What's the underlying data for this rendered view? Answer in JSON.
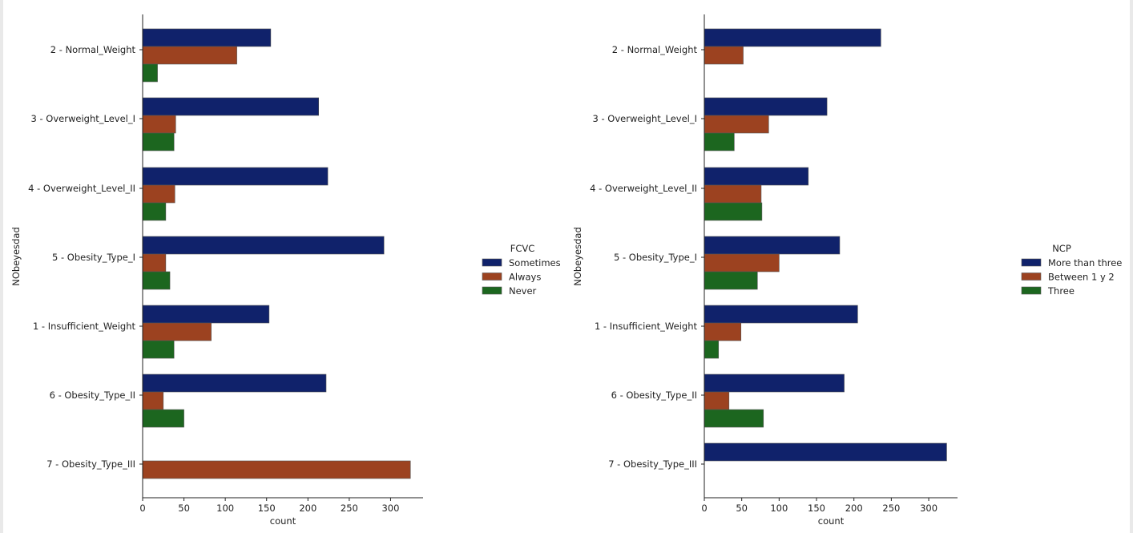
{
  "chart_data": [
    {
      "type": "bar",
      "orientation": "horizontal",
      "title": "",
      "xlabel": "count",
      "ylabel": "NObeyesdad",
      "xlim": [
        0,
        340
      ],
      "xticks": [
        0,
        50,
        100,
        150,
        200,
        250,
        300
      ],
      "grid": false,
      "legend_position": "right",
      "legend_title": "FCVC",
      "categories": [
        "2 - Normal_Weight",
        "3 - Overweight_Level_I",
        "4 - Overweight_Level_II",
        "5 - Obesity_Type_I",
        "1 - Insufficient_Weight",
        "6 - Obesity_Type_II",
        "7 - Obesity_Type_III"
      ],
      "series": [
        {
          "name": "Sometimes",
          "color": "#10226b",
          "values": [
            155,
            213,
            224,
            292,
            153,
            222,
            0
          ]
        },
        {
          "name": "Always",
          "color": "#9c4220",
          "values": [
            114,
            40,
            39,
            28,
            83,
            25,
            324
          ]
        },
        {
          "name": "Never",
          "color": "#1c661f",
          "values": [
            18,
            38,
            28,
            33,
            38,
            50,
            0
          ]
        }
      ]
    },
    {
      "type": "bar",
      "orientation": "horizontal",
      "title": "",
      "xlabel": "count",
      "ylabel": "NObeyesdad",
      "xlim": [
        0,
        340
      ],
      "xticks": [
        0,
        50,
        100,
        150,
        200,
        250,
        300
      ],
      "grid": false,
      "legend_position": "right",
      "legend_title": "NCP",
      "categories": [
        "2 - Normal_Weight",
        "3 - Overweight_Level_I",
        "4 - Overweight_Level_II",
        "5 - Obesity_Type_I",
        "1 - Insufficient_Weight",
        "6 - Obesity_Type_II",
        "7 - Obesity_Type_III"
      ],
      "series": [
        {
          "name": "More than three",
          "color": "#10226b",
          "values": [
            236,
            164,
            139,
            181,
            205,
            187,
            324
          ]
        },
        {
          "name": "Between 1 y 2",
          "color": "#9c4220",
          "values": [
            52,
            86,
            76,
            100,
            49,
            33,
            0
          ]
        },
        {
          "name": "Three",
          "color": "#1c661f",
          "values": [
            0,
            40,
            77,
            71,
            19,
            79,
            0
          ]
        }
      ]
    }
  ]
}
